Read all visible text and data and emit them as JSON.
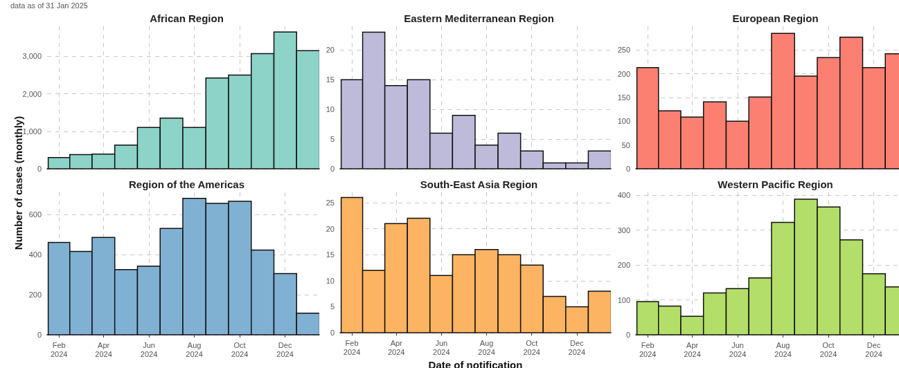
{
  "chart_data": [
    {
      "type": "bar",
      "title": "African Region",
      "ylabel": "Number of cases (monthly)",
      "annotations": [
        "data as of 31 Jan 2025"
      ],
      "x": [
        "2024-02",
        "2024-03",
        "2024-04",
        "2024-05",
        "2024-06",
        "2024-07",
        "2024-08",
        "2024-09",
        "2024-10",
        "2024-11",
        "2024-12",
        "2025-01"
      ],
      "values": [
        300,
        380,
        390,
        630,
        1100,
        1350,
        1100,
        2420,
        2500,
        3070,
        3650,
        3150
      ],
      "color": "#8dd3c7",
      "xlim": [
        "2024-01-16",
        "2025-01-16"
      ],
      "xticks": [
        {
          "value": "2024-02",
          "label": null
        },
        {
          "value": "2024-04",
          "label": null
        },
        {
          "value": "2024-06",
          "label": null
        },
        {
          "value": "2024-08",
          "label": null
        },
        {
          "value": "2024-10",
          "label": null
        },
        {
          "value": "2024-12",
          "label": null
        }
      ],
      "ylim": [
        0,
        3800
      ],
      "yticks": [
        0,
        {
          "value": 1000,
          "label": "1,000"
        },
        {
          "value": 2000,
          "label": "2,000"
        },
        {
          "value": 3000,
          "label": "3,000"
        }
      ],
      "grid": true,
      "tick_labels": "y"
    },
    {
      "type": "bar",
      "title": "Eastern Mediterranean Region",
      "x": [
        "2024-02",
        "2024-03",
        "2024-04",
        "2024-05",
        "2024-06",
        "2024-07",
        "2024-08",
        "2024-09",
        "2024-10",
        "2024-11",
        "2024-12",
        "2025-01"
      ],
      "values": [
        15,
        23,
        14,
        15,
        6,
        9,
        4,
        6,
        3,
        1,
        1,
        3
      ],
      "color": "#bebada",
      "xlim": [
        "2024-01-16",
        "2025-01-16"
      ],
      "xticks": [
        {
          "value": "2024-02",
          "label": null
        },
        {
          "value": "2024-04",
          "label": null
        },
        {
          "value": "2024-06",
          "label": null
        },
        {
          "value": "2024-08",
          "label": null
        },
        {
          "value": "2024-10",
          "label": null
        },
        {
          "value": "2024-12",
          "label": null
        }
      ],
      "ylim": [
        0,
        24
      ],
      "yticks": [
        0,
        5,
        10,
        15,
        20
      ],
      "grid": true,
      "tick_labels": "y"
    },
    {
      "type": "bar",
      "title": "European Region",
      "x": [
        "2024-02",
        "2024-03",
        "2024-04",
        "2024-05",
        "2024-06",
        "2024-07",
        "2024-08",
        "2024-09",
        "2024-10",
        "2024-11",
        "2024-12",
        "2025-01"
      ],
      "values": [
        213,
        122,
        109,
        141,
        100,
        151,
        285,
        195,
        234,
        277,
        213,
        242
      ],
      "color": "#fb8072",
      "xlim": [
        "2024-01-16",
        "2025-01-16"
      ],
      "xticks": [
        {
          "value": "2024-02",
          "label": null
        },
        {
          "value": "2024-04",
          "label": null
        },
        {
          "value": "2024-06",
          "label": null
        },
        {
          "value": "2024-08",
          "label": null
        },
        {
          "value": "2024-10",
          "label": null
        },
        {
          "value": "2024-12",
          "label": null
        }
      ],
      "ylim": [
        0,
        300
      ],
      "yticks": [
        0,
        50,
        100,
        150,
        200,
        250
      ],
      "grid": true,
      "tick_labels": "y"
    },
    {
      "type": "bar",
      "title": "Region of the Americas",
      "x": [
        "2024-02",
        "2024-03",
        "2024-04",
        "2024-05",
        "2024-06",
        "2024-07",
        "2024-08",
        "2024-09",
        "2024-10",
        "2024-11",
        "2024-12",
        "2025-01"
      ],
      "values": [
        460,
        415,
        485,
        325,
        342,
        530,
        680,
        655,
        665,
        422,
        305,
        108
      ],
      "color": "#80b1d3",
      "xlim": [
        "2024-01-16",
        "2025-01-16"
      ],
      "xticks": [
        {
          "value": "2024-02",
          "label": "Feb\n2024"
        },
        {
          "value": "2024-04",
          "label": "Apr\n2024"
        },
        {
          "value": "2024-06",
          "label": "Jun\n2024"
        },
        {
          "value": "2024-08",
          "label": "Aug\n2024"
        },
        {
          "value": "2024-10",
          "label": "Oct\n2024"
        },
        {
          "value": "2024-12",
          "label": "Dec\n2024"
        }
      ],
      "ylim": [
        0,
        710
      ],
      "yticks": [
        0,
        200,
        400,
        600
      ],
      "grid": true
    },
    {
      "type": "bar",
      "title": "South-East Asia Region",
      "xlabel": "Date of notification",
      "x": [
        "2024-02",
        "2024-03",
        "2024-04",
        "2024-05",
        "2024-06",
        "2024-07",
        "2024-08",
        "2024-09",
        "2024-10",
        "2024-11",
        "2024-12",
        "2025-01"
      ],
      "values": [
        26,
        12,
        21,
        22,
        11,
        15,
        16,
        15,
        13,
        7,
        5,
        8
      ],
      "color": "#fdb462",
      "xlim": [
        "2024-01-16",
        "2025-01-16"
      ],
      "xticks": [
        {
          "value": "2024-02",
          "label": "Feb\n2024"
        },
        {
          "value": "2024-04",
          "label": "Apr\n2024"
        },
        {
          "value": "2024-06",
          "label": "Jun\n2024"
        },
        {
          "value": "2024-08",
          "label": "Aug\n2024"
        },
        {
          "value": "2024-10",
          "label": "Oct\n2024"
        },
        {
          "value": "2024-12",
          "label": "Dec\n2024"
        }
      ],
      "ylim": [
        0,
        27
      ],
      "yticks": [
        0,
        5,
        10,
        15,
        20,
        25
      ],
      "grid": true
    },
    {
      "type": "bar",
      "title": "Western Pacific Region",
      "x": [
        "2024-02",
        "2024-03",
        "2024-04",
        "2024-05",
        "2024-06",
        "2024-07",
        "2024-08",
        "2024-09",
        "2024-10",
        "2024-11",
        "2024-12",
        "2025-01"
      ],
      "values": [
        95,
        82,
        53,
        120,
        132,
        163,
        322,
        388,
        366,
        272,
        175,
        137
      ],
      "color": "#b3de69",
      "xlim": [
        "2024-01-16",
        "2025-01-16"
      ],
      "xticks": [
        {
          "value": "2024-02",
          "label": "Feb\n2024"
        },
        {
          "value": "2024-04",
          "label": "Apr\n2024"
        },
        {
          "value": "2024-06",
          "label": "Jun\n2024"
        },
        {
          "value": "2024-08",
          "label": "Aug\n2024"
        },
        {
          "value": "2024-10",
          "label": "Oct\n2024"
        },
        {
          "value": "2024-12",
          "label": "Dec\n2024"
        }
      ],
      "ylim": [
        0,
        408
      ],
      "yticks": [
        0,
        100,
        200,
        300,
        400
      ],
      "grid": true
    }
  ]
}
